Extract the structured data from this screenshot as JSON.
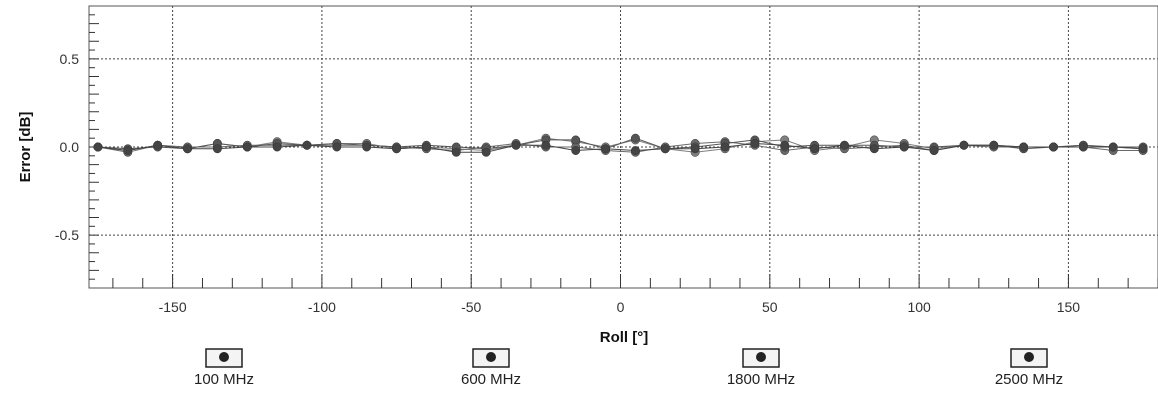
{
  "chart_data": {
    "type": "line",
    "title": "",
    "xlabel": "Roll [°]",
    "ylabel": "Error [dB]",
    "xlim": [
      -178,
      180
    ],
    "ylim": [
      -0.8,
      0.8
    ],
    "xticks": [
      -150,
      -100,
      -50,
      0,
      50,
      100,
      150
    ],
    "xtick_labels": [
      "-150",
      "-100",
      "-50",
      "0",
      "50",
      "100",
      "150"
    ],
    "yticks": [
      0.5,
      0.0,
      -0.5
    ],
    "ytick_labels": [
      "0.5",
      "0.0",
      "-0.5"
    ],
    "grid": true,
    "legend_placement": "bottom",
    "x": [
      -175,
      -165,
      -155,
      -145,
      -135,
      -125,
      -115,
      -105,
      -95,
      -85,
      -75,
      -65,
      -55,
      -45,
      -35,
      -25,
      -15,
      -5,
      5,
      15,
      25,
      35,
      45,
      55,
      65,
      75,
      85,
      95,
      105,
      115,
      125,
      135,
      145,
      155,
      165,
      175
    ],
    "series": [
      {
        "name": "100 MHz",
        "color": "#7f7f7f",
        "values": [
          0.0,
          -0.02,
          0.01,
          -0.01,
          0.02,
          0.0,
          0.03,
          0.01,
          0.02,
          0.02,
          -0.01,
          0.0,
          -0.01,
          -0.02,
          0.01,
          0.05,
          0.03,
          0.0,
          0.04,
          -0.01,
          -0.03,
          -0.01,
          0.03,
          0.04,
          -0.02,
          0.0,
          0.04,
          0.02,
          -0.01,
          0.01,
          0.01,
          0.0,
          0.0,
          0.01,
          0.0,
          -0.01
        ]
      },
      {
        "name": "600 MHz",
        "color": "#6a6a6a",
        "values": [
          0.0,
          -0.03,
          0.01,
          0.0,
          0.0,
          0.01,
          0.01,
          0.01,
          0.01,
          0.01,
          0.0,
          -0.01,
          -0.02,
          0.0,
          0.02,
          0.0,
          0.0,
          -0.02,
          -0.03,
          0.0,
          0.02,
          0.03,
          0.01,
          -0.02,
          0.0,
          -0.01,
          0.0,
          0.01,
          -0.02,
          0.01,
          0.0,
          0.0,
          0.0,
          0.0,
          -0.02,
          -0.02
        ]
      },
      {
        "name": "1800 MHz",
        "color": "#555555",
        "values": [
          0.0,
          -0.01,
          0.0,
          -0.01,
          0.02,
          0.0,
          0.02,
          0.01,
          0.02,
          0.01,
          0.0,
          0.01,
          0.0,
          -0.01,
          0.01,
          0.04,
          0.04,
          -0.01,
          0.05,
          -0.01,
          0.0,
          0.02,
          0.04,
          0.0,
          0.01,
          0.01,
          0.01,
          0.0,
          0.0,
          0.01,
          0.01,
          -0.01,
          0.0,
          0.01,
          0.0,
          0.0
        ]
      },
      {
        "name": "2500 MHz",
        "color": "#444444",
        "values": [
          0.0,
          -0.02,
          0.01,
          -0.01,
          -0.01,
          0.0,
          0.0,
          0.01,
          0.0,
          0.0,
          -0.01,
          0.0,
          -0.03,
          -0.03,
          0.01,
          0.01,
          -0.02,
          -0.01,
          -0.02,
          -0.01,
          -0.01,
          0.0,
          0.02,
          0.01,
          -0.01,
          0.01,
          -0.01,
          0.0,
          -0.02,
          0.01,
          0.01,
          0.0,
          0.0,
          0.0,
          0.0,
          -0.01
        ]
      }
    ]
  }
}
